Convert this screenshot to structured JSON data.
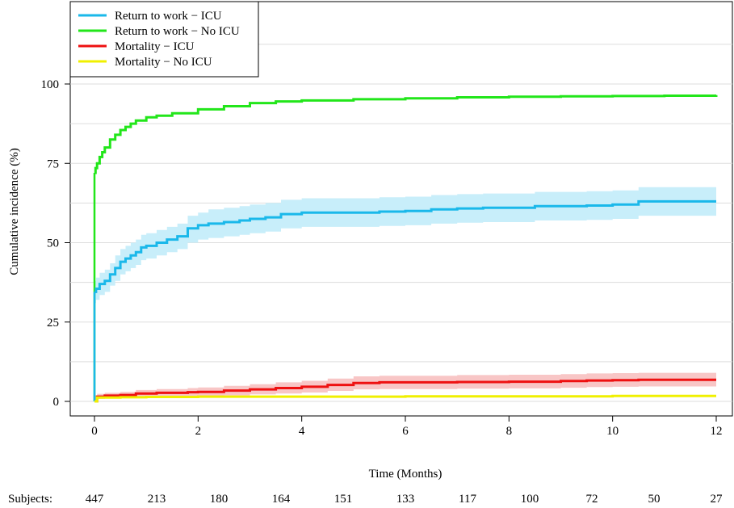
{
  "chart_data": {
    "type": "line",
    "xlabel": "Time (Months)",
    "ylabel": "Cumulative incidence (%)",
    "xlim": [
      0,
      12
    ],
    "ylim": [
      0,
      100
    ],
    "x_ticks": [
      "0",
      "2",
      "4",
      "6",
      "8",
      "10",
      "12"
    ],
    "y_ticks": [
      "0",
      "25",
      "50",
      "75",
      "100"
    ],
    "grid": "horizontal",
    "legend_position": "top-left",
    "risk_table": {
      "label": "Subjects:",
      "times": [
        0,
        1.2,
        2.4,
        3.6,
        4.8,
        6.0,
        7.2,
        8.4,
        9.6,
        10.8,
        12
      ],
      "counts": [
        "447",
        "213",
        "180",
        "164",
        "151",
        "133",
        "117",
        "100",
        "72",
        "50",
        "27"
      ]
    },
    "series": [
      {
        "name": "Return to work − ICU",
        "color": "#1ab8ea",
        "band_color": "#c8eefa",
        "x": [
          0,
          0.03,
          0.1,
          0.2,
          0.3,
          0.4,
          0.5,
          0.6,
          0.7,
          0.8,
          0.9,
          1.0,
          1.2,
          1.4,
          1.6,
          1.8,
          2.0,
          2.2,
          2.5,
          2.8,
          3.0,
          3.3,
          3.6,
          4.0,
          4.5,
          5.0,
          5.5,
          6.0,
          6.5,
          7.0,
          7.5,
          8.0,
          8.5,
          9.0,
          9.5,
          10.0,
          10.5,
          11.0,
          12.0
        ],
        "y": [
          34.5,
          35.5,
          37,
          38,
          40,
          42,
          44,
          45,
          46,
          47,
          48.5,
          49,
          50,
          51,
          52,
          54.5,
          55.5,
          56,
          56.5,
          57,
          57.5,
          58,
          59,
          59.5,
          59.5,
          59.5,
          59.8,
          60,
          60.5,
          60.8,
          61,
          61,
          61.5,
          61.5,
          61.7,
          62,
          63,
          63,
          63
        ],
        "lower": [
          31,
          32,
          33.5,
          34.5,
          36.5,
          38,
          40,
          41,
          42,
          43,
          44.5,
          45,
          46,
          47,
          48,
          50,
          51,
          51.5,
          52,
          52.5,
          53,
          53.5,
          54.5,
          55,
          55,
          55,
          55.3,
          55.5,
          56,
          56.3,
          56.5,
          56.5,
          57,
          57,
          57.2,
          57.5,
          58.5,
          58.5,
          58.5
        ],
        "upper": [
          38,
          39,
          40.5,
          41.5,
          43.5,
          46,
          48,
          49,
          50,
          51,
          52.5,
          53,
          54,
          55,
          56,
          58.5,
          59.5,
          60.5,
          61,
          61.5,
          62,
          62.5,
          63.5,
          64,
          64,
          64,
          64.3,
          64.5,
          65,
          65.3,
          65.5,
          65.5,
          66,
          66,
          66.2,
          66.5,
          67.5,
          67.5,
          67.5
        ]
      },
      {
        "name": "Return to work − No ICU",
        "color": "#22e61a",
        "x": [
          0,
          0.02,
          0.05,
          0.1,
          0.15,
          0.2,
          0.3,
          0.4,
          0.5,
          0.6,
          0.7,
          0.8,
          1.0,
          1.2,
          1.5,
          2.0,
          2.5,
          3.0,
          3.5,
          4.0,
          5.0,
          6.0,
          7.0,
          8.0,
          9.0,
          10.0,
          11.0,
          12.0
        ],
        "y": [
          72,
          73.5,
          75,
          77,
          78.5,
          80,
          82.5,
          84,
          85.5,
          86.5,
          87.5,
          88.5,
          89.5,
          90,
          90.8,
          92,
          93,
          94,
          94.5,
          94.8,
          95.2,
          95.5,
          95.8,
          96,
          96.1,
          96.2,
          96.3,
          96.5
        ]
      },
      {
        "name": "Mortality − ICU",
        "color": "#ee1111",
        "band_color": "#f8c6c6",
        "x": [
          0,
          0.05,
          0.2,
          0.5,
          0.8,
          1.2,
          1.8,
          2.0,
          2.5,
          3.0,
          3.5,
          4.0,
          4.5,
          5.0,
          5.5,
          6.0,
          6.5,
          7.0,
          7.5,
          8.0,
          8.5,
          9.0,
          9.5,
          10.0,
          10.5,
          11.0,
          12.0
        ],
        "y": [
          0,
          1.5,
          1.8,
          2,
          2.5,
          2.7,
          2.9,
          3,
          3.4,
          3.8,
          4.2,
          4.6,
          5.2,
          5.8,
          6,
          6,
          6,
          6.1,
          6.1,
          6.2,
          6.2,
          6.4,
          6.6,
          6.7,
          6.8,
          6.8,
          6.8
        ],
        "lower": [
          0,
          0.8,
          1,
          1.1,
          1.4,
          1.5,
          1.6,
          1.7,
          1.9,
          2.2,
          2.5,
          2.8,
          3.3,
          3.8,
          3.9,
          3.9,
          3.9,
          4,
          4,
          4.1,
          4.1,
          4.3,
          4.5,
          4.6,
          4.7,
          4.7,
          4.7
        ],
        "upper": [
          0,
          2.4,
          2.7,
          3,
          3.6,
          3.9,
          4.2,
          4.4,
          4.9,
          5.4,
          6,
          6.5,
          7.2,
          7.9,
          8.1,
          8.1,
          8.1,
          8.3,
          8.3,
          8.4,
          8.4,
          8.6,
          8.8,
          8.9,
          9,
          9,
          9
        ]
      },
      {
        "name": "Mortality − No ICU",
        "color": "#f0f000",
        "x": [
          0,
          0.05,
          0.5,
          1.0,
          2.0,
          4.0,
          6.0,
          8.0,
          10.0,
          12.0
        ],
        "y": [
          0,
          1.2,
          1.3,
          1.4,
          1.5,
          1.5,
          1.6,
          1.6,
          1.7,
          1.7
        ]
      }
    ]
  }
}
